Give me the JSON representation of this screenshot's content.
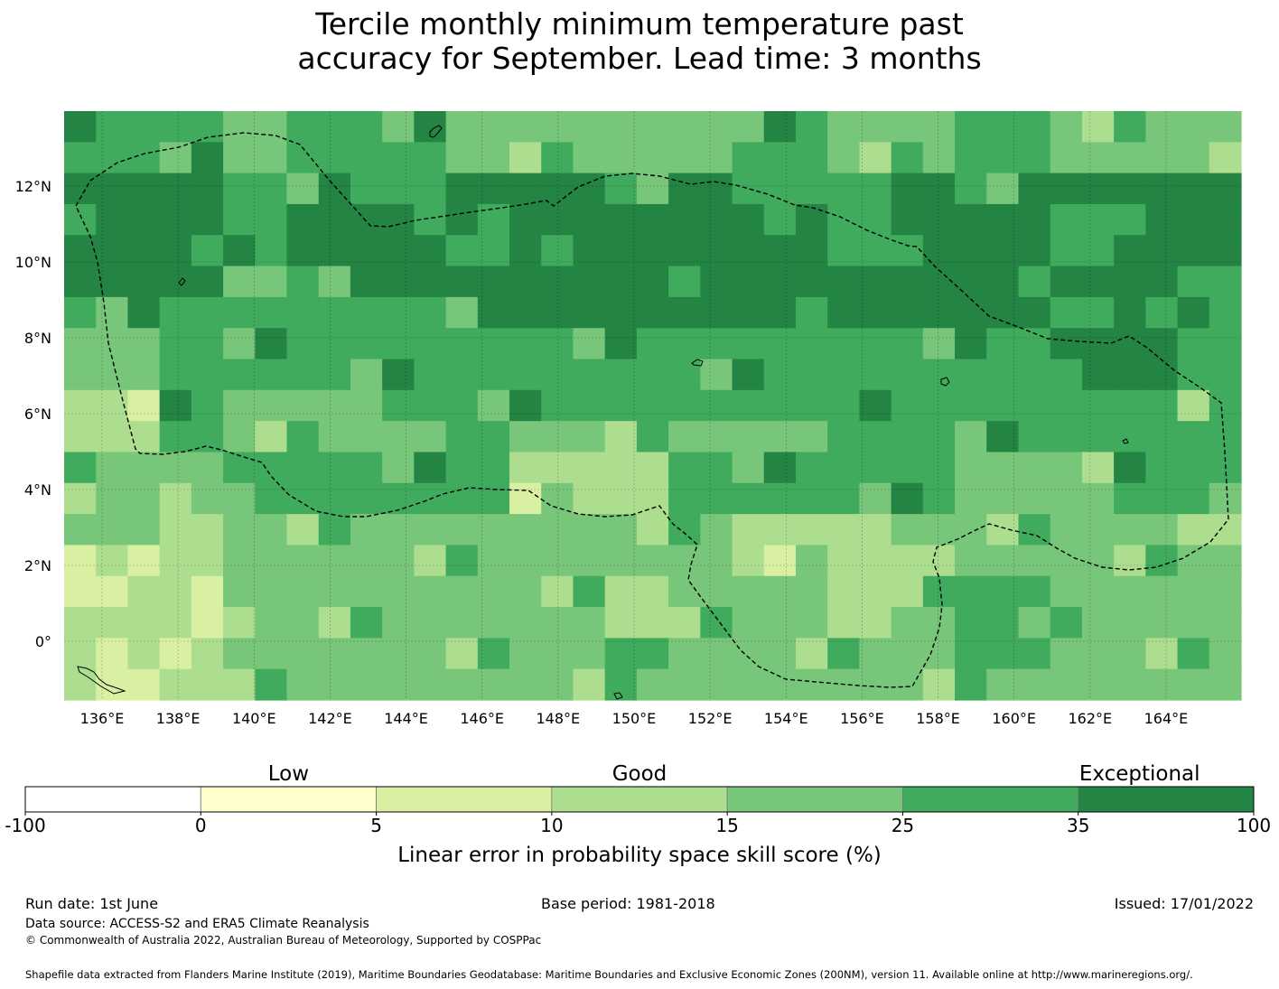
{
  "title_line1": "Tercile monthly minimum temperature past",
  "title_line2": "accuracy for September. Lead time: 3 months",
  "lat_labels": [
    "12°N",
    "10°N",
    "8°N",
    "6°N",
    "4°N",
    "2°N",
    "0°"
  ],
  "lon_labels": [
    "136°E",
    "138°E",
    "140°E",
    "142°E",
    "144°E",
    "146°E",
    "148°E",
    "150°E",
    "152°E",
    "154°E",
    "156°E",
    "158°E",
    "160°E",
    "162°E",
    "164°E"
  ],
  "legend": {
    "category_labels": [
      "Low",
      "Good",
      "Exceptional"
    ],
    "bounds": [
      "-100",
      "0",
      "5",
      "10",
      "15",
      "25",
      "35",
      "100"
    ],
    "colors": [
      "#ffffff",
      "#ffffcc",
      "#d9f0a3",
      "#addd8e",
      "#78c679",
      "#41ab5d",
      "#238443"
    ],
    "axis_label": "Linear error in probability space skill score (%)"
  },
  "footer": {
    "run_date": "Run date: 1st June",
    "base_period": "Base period: 1981-2018",
    "issued": "Issued: 17/01/2022",
    "data_source": "Data source: ACCESS-S2 and ERA5 Climate Reanalysis",
    "copyright": "© Commonwealth of Australia 2022, Australian Bureau of Meteorology, Supported by COSPPac",
    "shapefile": "Shapefile data extracted from Flanders Marine Institute (2019), Maritime Boundaries Geodatabase: Maritime Boundaries and Exclusive Economic Zones (200NM), version 11. Available online at http://www.marineregions.org/."
  }
}
